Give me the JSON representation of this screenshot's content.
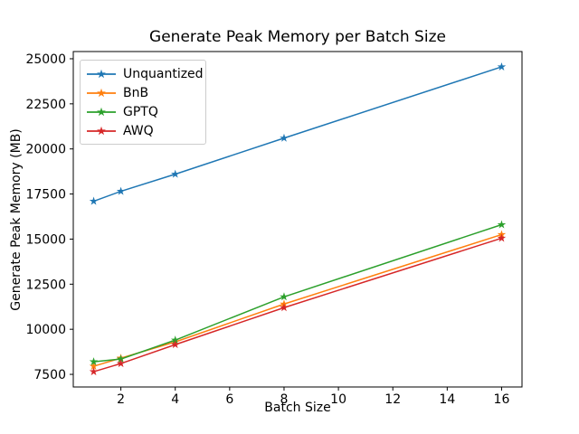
{
  "chart_data": {
    "type": "line",
    "title": "Generate Peak Memory per Batch Size",
    "xlabel": "Batch Size",
    "ylabel": "Generate Peak Memory (MB)",
    "x": [
      1,
      2,
      4,
      8,
      16
    ],
    "series": [
      {
        "name": "Unquantized",
        "color": "#1f77b4",
        "values": [
          17100,
          17650,
          18600,
          20600,
          24550
        ]
      },
      {
        "name": "BnB",
        "color": "#ff7f0e",
        "values": [
          7950,
          8400,
          9300,
          11400,
          15250
        ]
      },
      {
        "name": "GPTQ",
        "color": "#2ca02c",
        "values": [
          8200,
          8350,
          9400,
          11800,
          15800
        ]
      },
      {
        "name": "AWQ",
        "color": "#d62728",
        "values": [
          7650,
          8100,
          9150,
          11200,
          15050
        ]
      }
    ],
    "xticks": [
      2,
      4,
      6,
      8,
      10,
      12,
      14,
      16
    ],
    "yticks": [
      7500,
      10000,
      12500,
      15000,
      17500,
      20000,
      22500,
      25000
    ],
    "xlim": [
      0.25,
      16.75
    ],
    "ylim": [
      6800,
      25400
    ],
    "marker": "star",
    "line_width": 1.5,
    "legend_position": "upper-left",
    "grid": false,
    "frame_color": "#000000",
    "background_color": "#ffffff"
  }
}
